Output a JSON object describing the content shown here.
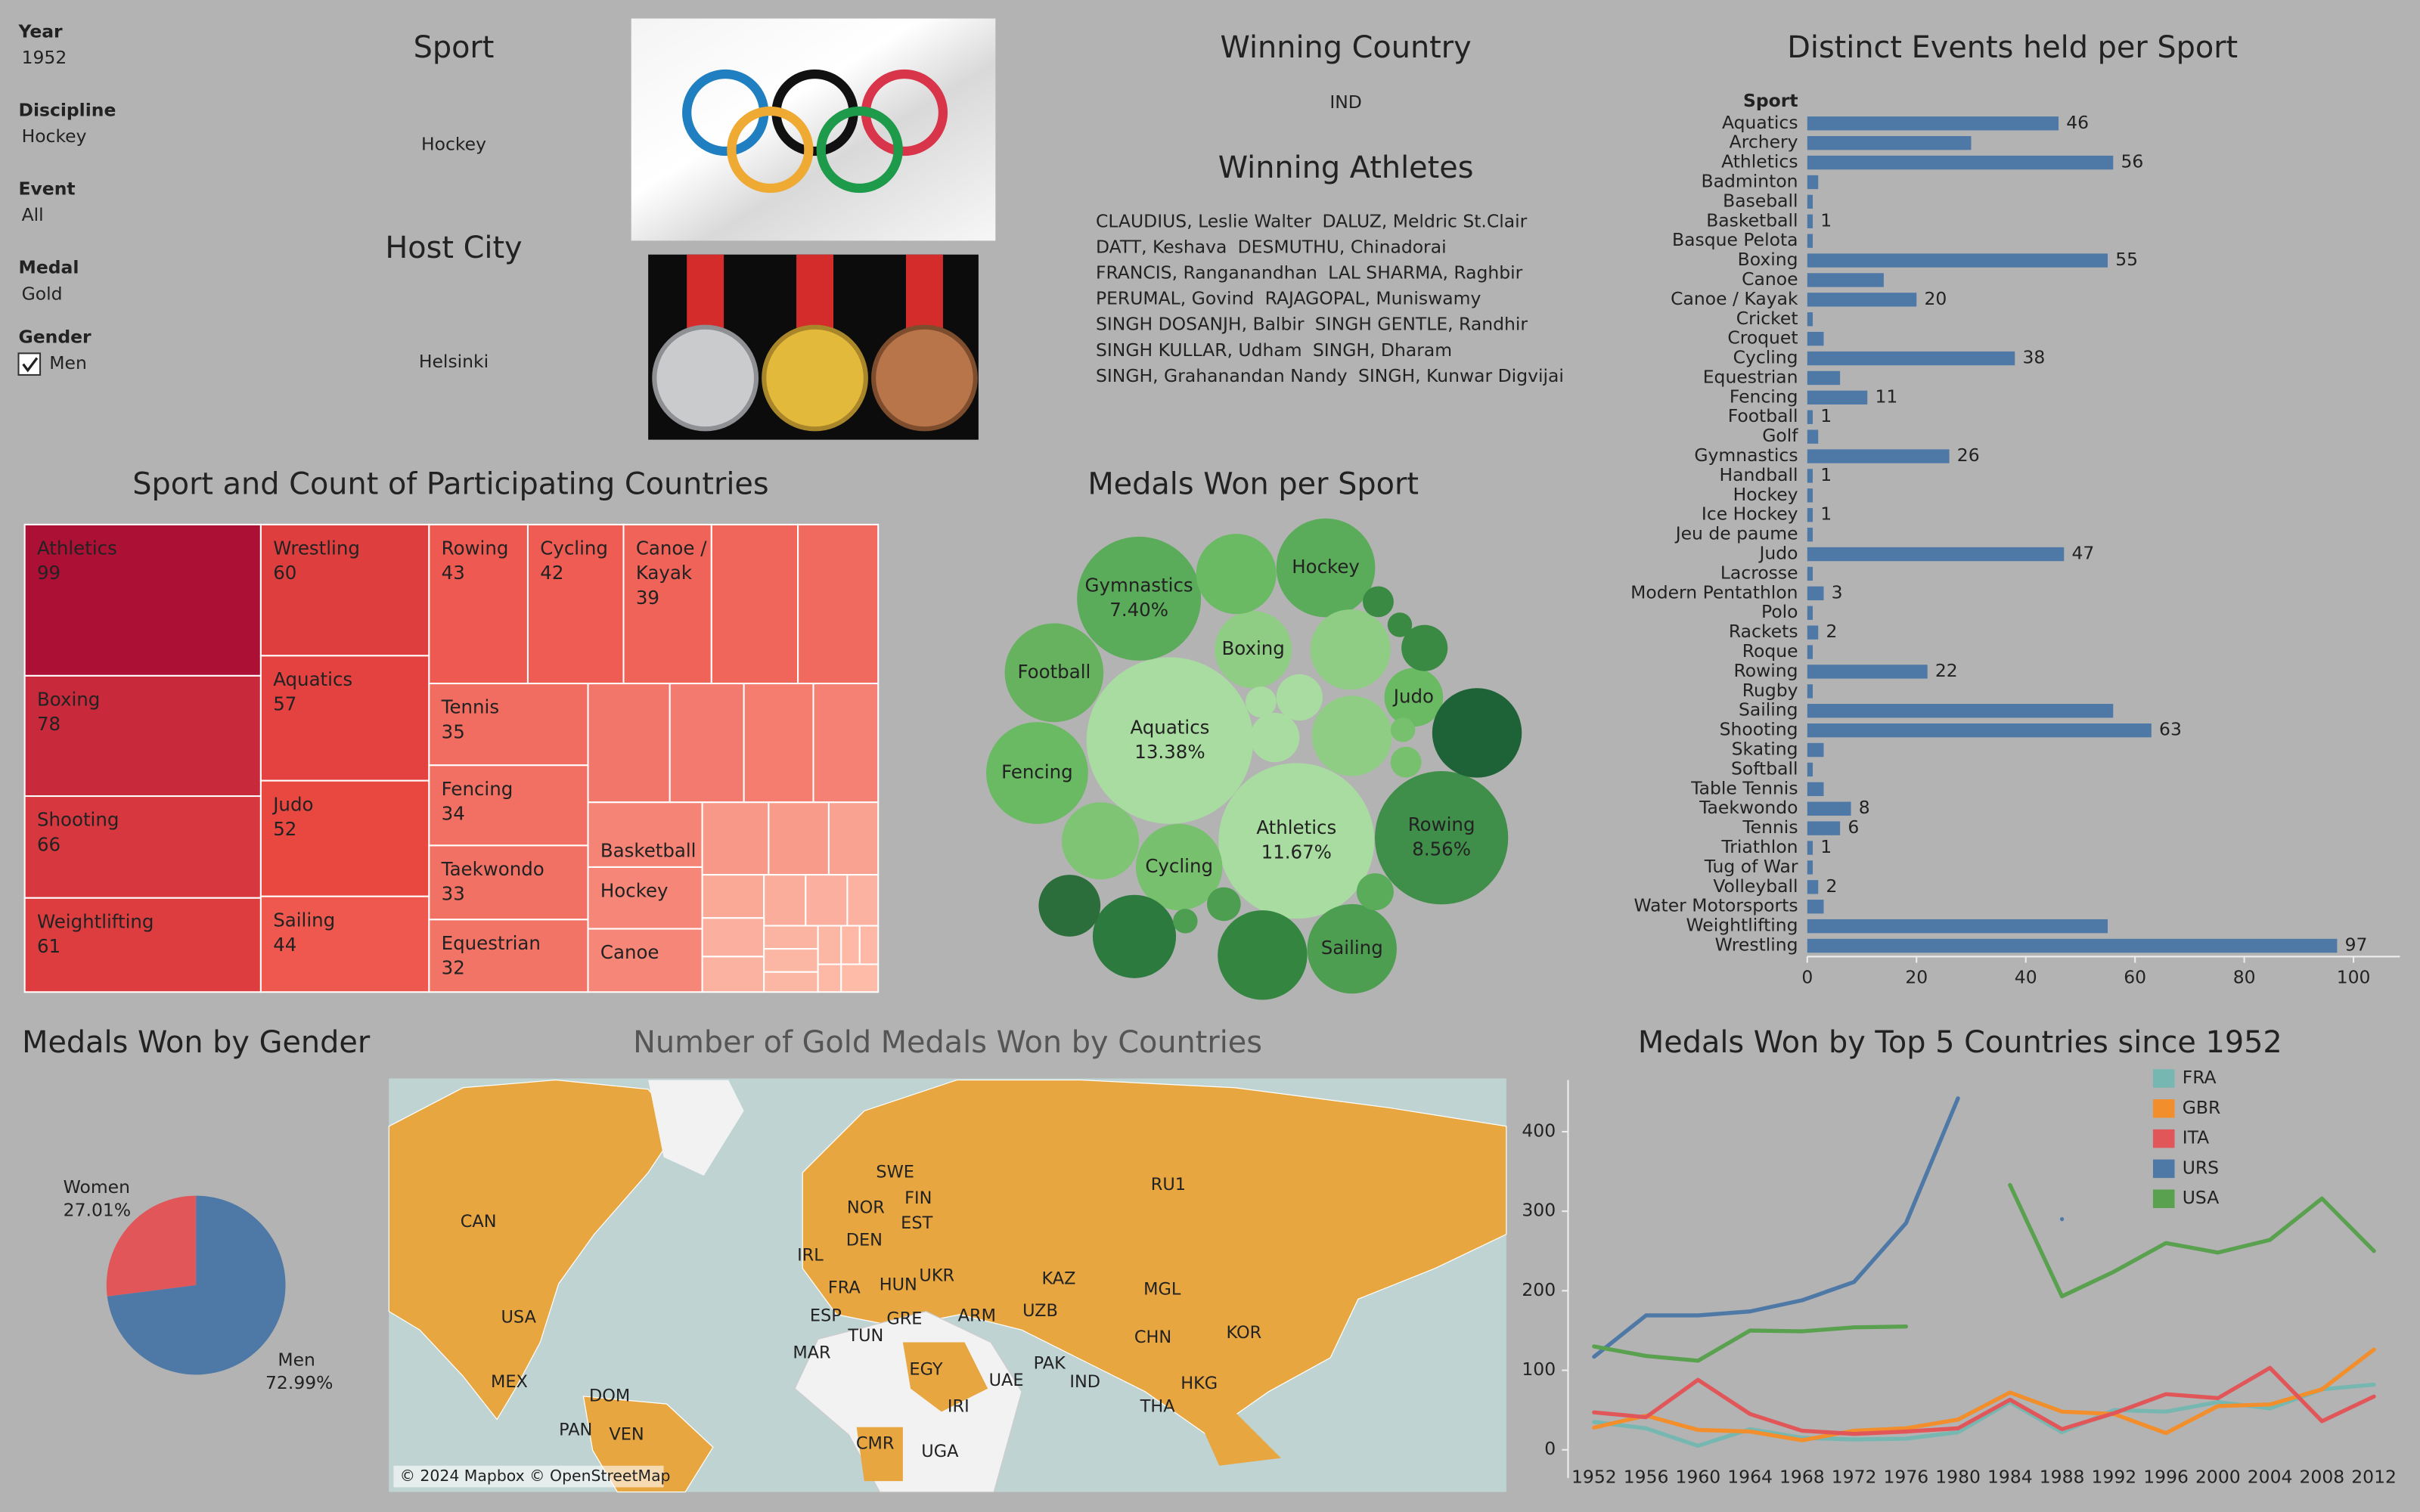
{
  "filters": [
    {
      "label": "Year",
      "value": "1952"
    },
    {
      "label": "Discipline",
      "value": "Hockey"
    },
    {
      "label": "Event",
      "value": "All"
    },
    {
      "label": "Medal",
      "value": "Gold"
    },
    {
      "label": "Gender",
      "value": "Men"
    }
  ],
  "sport": {
    "title": "Sport",
    "value": "Hockey"
  },
  "host_city": {
    "title": "Host City",
    "value": "Helsinki"
  },
  "winning_country": {
    "title": "Winning Country",
    "value": "IND"
  },
  "winning_athletes": {
    "title": "Winning Athletes",
    "names": [
      "CLAUDIUS, Leslie Walter",
      "DALUZ, Meldric St.Clair",
      "DATT, Keshava",
      "DESMUTHU, Chinadorai",
      "FRANCIS, Ranganandhan",
      "LAL SHARMA, Raghbir",
      "PERUMAL, Govind",
      "RAJAGOPAL, Muniswamy",
      "SINGH DOSANJH, Balbir",
      "SINGH GENTLE, Randhir",
      "SINGH KULLAR, Udham",
      "SINGH, Dharam",
      "SINGH, Grahanandan Nandy",
      "SINGH, Kunwar Digvijai"
    ]
  },
  "chart_data": [
    {
      "type": "treemap",
      "title": "Sport and Count of Participating Countries",
      "categories": [
        "Athletics",
        "Boxing",
        "Shooting",
        "Weightlifting",
        "Wrestling",
        "Aquatics",
        "Judo",
        "Sailing",
        "Rowing",
        "Cycling",
        "Canoe / Kayak",
        null,
        null,
        "Tennis",
        "Fencing",
        "Taekwondo",
        "Equestrian",
        null,
        null,
        null,
        null,
        "Basketball",
        "Hockey",
        "Canoe",
        null,
        null,
        null,
        null,
        null,
        null,
        null,
        null,
        null,
        null,
        null,
        null,
        null,
        null,
        null,
        null,
        null
      ],
      "values": [
        99,
        78,
        66,
        61,
        60,
        57,
        52,
        44,
        43,
        42,
        39,
        38,
        36,
        35,
        34,
        33,
        32,
        31,
        29,
        28,
        26,
        25,
        24,
        24,
        16,
        15,
        12,
        9,
        7,
        6,
        5,
        6,
        5,
        4,
        3,
        3,
        3,
        2,
        2,
        2,
        1
      ],
      "value_labels": [
        "99",
        "78",
        "66",
        "61",
        "60",
        "57",
        "52",
        "44",
        "43",
        "42",
        "39",
        null,
        null,
        "35",
        "34",
        "33",
        "32",
        null,
        null,
        null,
        null,
        null,
        null,
        null,
        null,
        null,
        null,
        null,
        null,
        null,
        null,
        null,
        null,
        null,
        null,
        null,
        null,
        null,
        null,
        null,
        null
      ],
      "color_range": [
        "#fdbba8",
        "#ec4a42",
        "#ad1035"
      ]
    },
    {
      "type": "bubble",
      "title": "Medals Won per Sport",
      "categories": [
        "Aquatics",
        "Athletics",
        "Rowing",
        "Gymnastics",
        "Fencing",
        "Football",
        "Hockey",
        "Sailing",
        "Cycling",
        "Boxing",
        "Judo",
        null,
        null,
        null,
        null,
        null,
        null,
        null,
        null,
        null,
        null,
        null,
        null,
        null,
        null,
        null,
        null,
        null,
        null,
        null
      ],
      "values": [
        13.38,
        11.67,
        8.56,
        7.4,
        5.0,
        4.7,
        4.7,
        3.86,
        3.6,
        2.87,
        1.66,
        3.86,
        3.86,
        3.34,
        3.1,
        3.1,
        3.1,
        2.87,
        1.84,
        1.17,
        1.03,
        1.03,
        0.66,
        0.55,
        0.46,
        0.46,
        0.46,
        0.29,
        0.29,
        0.29
      ],
      "value_labels": [
        "13.38%",
        "11.67%",
        "8.56%",
        "7.40%",
        null,
        null,
        null,
        null,
        null,
        null,
        null,
        null,
        null,
        null,
        null,
        null,
        null,
        null,
        null,
        null,
        null,
        null,
        null,
        null,
        null,
        null,
        null,
        null,
        null,
        null
      ],
      "colors": [
        "#a9dca0",
        "#a9dca0",
        "#3f8e4a",
        "#5aab5a",
        "#6ab963",
        "#67b25f",
        "#5aab5a",
        "#4e9e52",
        "#77c06d",
        "#8fcd84",
        "#6ab963",
        "#1e6337",
        "#34853f",
        "#2c7a3e",
        "#6ab963",
        "#8fcd84",
        "#8fcd84",
        "#7fc474",
        "#2c6e3b",
        "#a9dca0",
        "#3a8a44",
        "#a9dca0",
        "#5aab5a",
        "#4e9e52",
        "#3a8a44",
        "#a9dca0",
        "#77c06d",
        "#3a8a44",
        "#4e9e52",
        "#77c06d"
      ]
    },
    {
      "type": "bar",
      "orientation": "horizontal",
      "title": "Distinct Events held per Sport",
      "category_header": "Sport",
      "categories": [
        "Aquatics",
        "Archery",
        "Athletics",
        "Badminton",
        "Baseball",
        "Basketball",
        "Basque Pelota",
        "Boxing",
        "Canoe",
        "Canoe / Kayak",
        "Cricket",
        "Croquet",
        "Cycling",
        "Equestrian",
        "Fencing",
        "Football",
        "Golf",
        "Gymnastics",
        "Handball",
        "Hockey",
        "Ice Hockey",
        "Jeu de paume",
        "Judo",
        "Lacrosse",
        "Modern Pentathlon",
        "Polo",
        "Rackets",
        "Roque",
        "Rowing",
        "Rugby",
        "Sailing",
        "Shooting",
        "Skating",
        "Softball",
        "Table Tennis",
        "Taekwondo",
        "Tennis",
        "Triathlon",
        "Tug of War",
        "Volleyball",
        "Water Motorsports",
        "Weightlifting",
        "Wrestling"
      ],
      "values": [
        46,
        30,
        56,
        2,
        1,
        1,
        1,
        55,
        14,
        20,
        1,
        3,
        38,
        6,
        11,
        1,
        2,
        26,
        1,
        1,
        1,
        1,
        47,
        1,
        3,
        1,
        2,
        1,
        22,
        1,
        56,
        63,
        3,
        1,
        3,
        8,
        6,
        1,
        1,
        2,
        3,
        55,
        97
      ],
      "value_labels": [
        "46",
        null,
        "56",
        null,
        null,
        "1",
        null,
        "55",
        null,
        "20",
        null,
        null,
        "38",
        null,
        "11",
        "1",
        null,
        "26",
        "1",
        null,
        "1",
        null,
        "47",
        null,
        "3",
        null,
        "2",
        null,
        "22",
        null,
        null,
        "63",
        null,
        null,
        null,
        "8",
        "6",
        "1",
        null,
        "2",
        null,
        null,
        "97"
      ],
      "color": "#4e79a7",
      "xlim": [
        0,
        108.5
      ],
      "xticks": [
        0,
        20,
        40,
        60,
        80,
        100
      ]
    },
    {
      "type": "pie",
      "title": "Medals Won by Gender",
      "categories": [
        "Women",
        "Men"
      ],
      "values": [
        27.01,
        72.99
      ],
      "value_labels": [
        "27.01%",
        "72.99%"
      ],
      "colors": [
        "#e15759",
        "#4e79a7"
      ]
    },
    {
      "type": "map",
      "title": "Number of Gold Medals Won by Countries",
      "attribution": "© 2024 Mapbox © OpenStreetMap",
      "labels": [
        "CAN",
        "USA",
        "MEX",
        "DOM",
        "PAN",
        "VEN",
        "SWE",
        "NOR",
        "FIN",
        "EST",
        "DEN",
        "IRL",
        "FRA",
        "HUN",
        "UKR",
        "ESP",
        "GRE",
        "ARM",
        "TUN",
        "MAR",
        "EGY",
        "IRI",
        "UAE",
        "PAK",
        "IND",
        "CMR",
        "UGA",
        "RU1",
        "KAZ",
        "UZB",
        "MGL",
        "CHN",
        "KOR",
        "HKG",
        "THA"
      ]
    },
    {
      "type": "line",
      "title": "Medals Won by Top 5 Countries since 1952",
      "x": [
        1952,
        1956,
        1960,
        1964,
        1968,
        1972,
        1976,
        1980,
        1984,
        1988,
        1992,
        1996,
        2000,
        2004,
        2008,
        2012
      ],
      "series": [
        {
          "name": "FRA",
          "color": "#76b7b2",
          "values": [
            35,
            27,
            5,
            26,
            15,
            13,
            14,
            22,
            60,
            22,
            50,
            48,
            60,
            52,
            76,
            82
          ]
        },
        {
          "name": "GBR",
          "color": "#f28e2b",
          "values": [
            28,
            43,
            25,
            23,
            12,
            24,
            27,
            38,
            72,
            48,
            45,
            21,
            55,
            57,
            76,
            126
          ]
        },
        {
          "name": "ITA",
          "color": "#e15759",
          "values": [
            47,
            41,
            88,
            45,
            24,
            20,
            23,
            27,
            63,
            26,
            46,
            70,
            65,
            103,
            36,
            67
          ]
        },
        {
          "name": "URS",
          "color": "#4e79a7",
          "values": [
            117,
            169,
            169,
            174,
            188,
            211,
            285,
            442,
            null,
            290,
            null,
            null,
            null,
            null,
            null,
            null
          ]
        },
        {
          "name": "USA",
          "color": "#59a14f",
          "values": [
            130,
            118,
            112,
            150,
            149,
            154,
            155,
            null,
            333,
            193,
            224,
            260,
            248,
            264,
            316,
            250
          ]
        }
      ],
      "xlim": [
        1950,
        2014
      ],
      "ylim": [
        -20,
        465
      ],
      "xticks": [
        1952,
        1956,
        1960,
        1964,
        1968,
        1972,
        1976,
        1980,
        1984,
        1988,
        1992,
        1996,
        2000,
        2004,
        2008,
        2012
      ],
      "yticks": [
        0,
        100,
        200,
        300,
        400
      ],
      "legend": "top right"
    }
  ]
}
